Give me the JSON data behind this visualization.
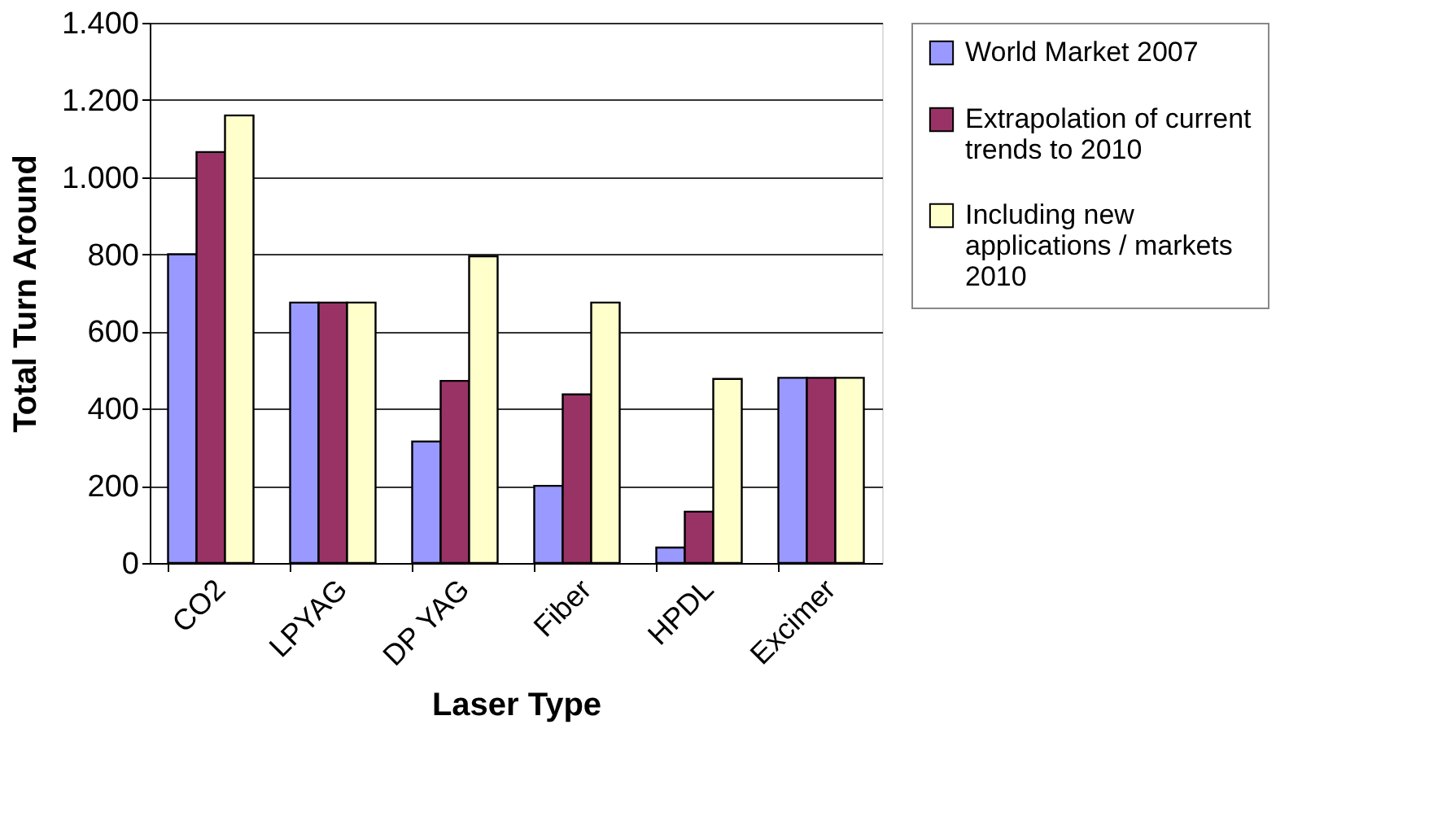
{
  "chart_data": {
    "type": "bar",
    "xlabel": "Laser Type",
    "ylabel": "Total Turn Around",
    "categories": [
      "CO2",
      "LPYAG",
      "DP YAG",
      "Fiber",
      "HPDL",
      "Excimer"
    ],
    "series": [
      {
        "name": "World Market 2007",
        "color": "#9999ff",
        "values": [
          800,
          675,
          315,
          200,
          40,
          480
        ]
      },
      {
        "name": "Extrapolation of current trends to 2010",
        "color": "#993366",
        "values": [
          1065,
          675,
          472,
          437,
          133,
          480
        ]
      },
      {
        "name": "Including new applications / markets 2010",
        "color": "#ffffcc",
        "values": [
          1160,
          675,
          795,
          675,
          477,
          480
        ]
      }
    ],
    "ylim": [
      0,
      1400
    ],
    "yticks": [
      0,
      200,
      400,
      600,
      800,
      {
        "value": 1000,
        "label": "1.000"
      },
      {
        "value": 1200,
        "label": "1.200"
      },
      {
        "value": 1400,
        "label": "1.400"
      }
    ],
    "grid": "y",
    "legend": "right"
  }
}
